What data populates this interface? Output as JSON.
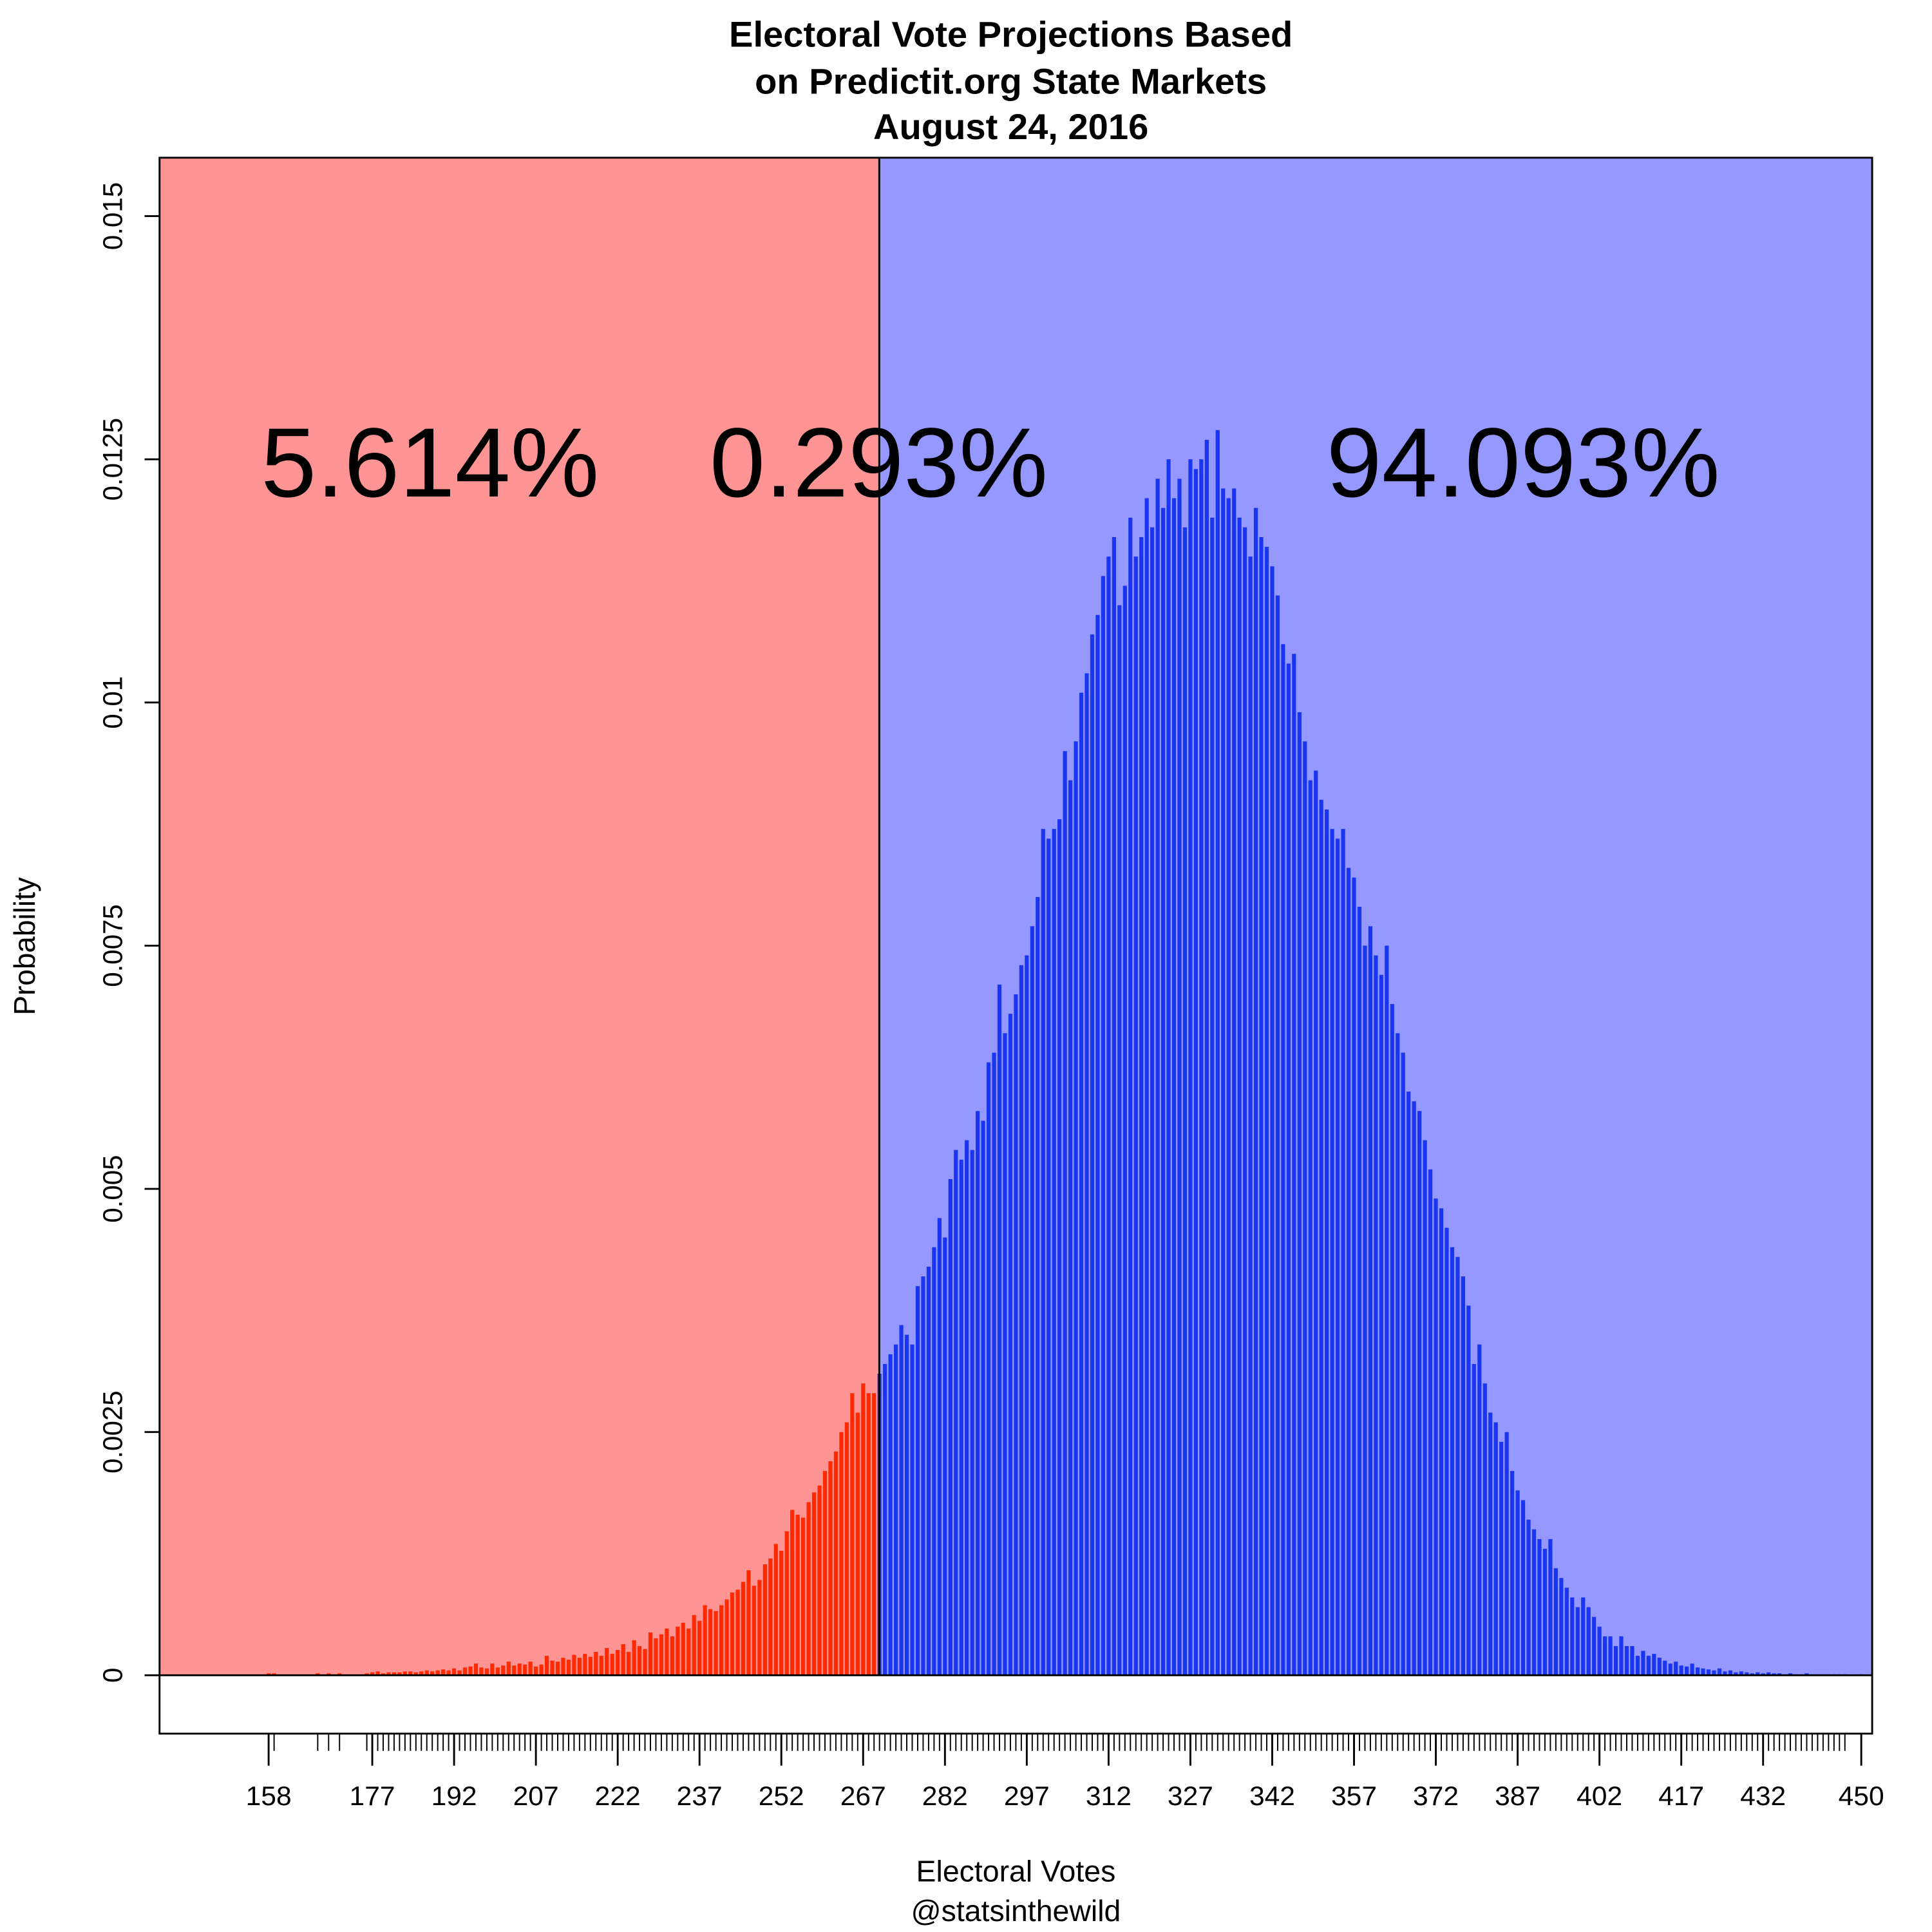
{
  "chart_data": {
    "type": "bar",
    "title": [
      "Electoral Vote Projections Based",
      "on Predictit.org State Markets",
      "August 24, 2016"
    ],
    "xlabel": "Electoral Votes",
    "caption": "@statsinthewild",
    "ylabel": "Probability",
    "annotations": [
      "5.614%",
      "0.293%",
      "94.093%"
    ],
    "background_colors": [
      "#ff9494",
      "#9498ff"
    ],
    "xlim": [
      138,
      452
    ],
    "ylim": [
      -0.0006,
      0.0156
    ],
    "xticks": [
      158,
      177,
      192,
      207,
      222,
      237,
      252,
      267,
      282,
      297,
      312,
      327,
      342,
      357,
      372,
      387,
      402,
      417,
      432,
      450
    ],
    "yticks": [
      0,
      0.0025,
      0.005,
      0.0075,
      0.01,
      0.0125,
      0.015
    ],
    "series": [
      {
        "color": "#ff2a00",
        "x": [
          158,
          159,
          167,
          169,
          171,
          176,
          177,
          178,
          179,
          180,
          181,
          182,
          183,
          184,
          185,
          186,
          187,
          188,
          189,
          190,
          191,
          192,
          193,
          194,
          195,
          196,
          197,
          198,
          199,
          200,
          201,
          202,
          203,
          204,
          205,
          206,
          207,
          208,
          209,
          210,
          211,
          212,
          213,
          214,
          215,
          216,
          217,
          218,
          219,
          220,
          221,
          222,
          223,
          224,
          225,
          226,
          227,
          228,
          229,
          230,
          231,
          232,
          233,
          234,
          235,
          236,
          237,
          238,
          239,
          240,
          241,
          242,
          243,
          244,
          245,
          246,
          247,
          248,
          249,
          250,
          251,
          252,
          253,
          254,
          255,
          256,
          257,
          258,
          259,
          260,
          261,
          262,
          263,
          264,
          265,
          266,
          267,
          268,
          269
        ],
        "values": [
          2e-05,
          2e-05,
          2e-05,
          2e-05,
          2e-05,
          2e-05,
          3e-05,
          4e-05,
          2e-05,
          3e-05,
          3e-05,
          3e-05,
          4e-05,
          4e-05,
          3e-05,
          4e-05,
          5e-05,
          4e-05,
          5e-05,
          6e-05,
          5e-05,
          7e-05,
          5e-05,
          8e-05,
          9e-05,
          0.00012,
          8e-05,
          7e-05,
          0.00012,
          8e-05,
          0.0001,
          0.00014,
          0.0001,
          0.00012,
          0.00011,
          0.00014,
          9e-05,
          0.00011,
          0.0002,
          0.00015,
          0.00014,
          0.00018,
          0.00016,
          0.00021,
          0.00018,
          0.00022,
          0.00019,
          0.00024,
          0.0002,
          0.00028,
          0.00022,
          0.00026,
          0.00032,
          0.00024,
          0.00036,
          0.0003,
          0.00027,
          0.00044,
          0.00038,
          0.00042,
          0.00048,
          0.0004,
          0.0005,
          0.00054,
          0.00048,
          0.00062,
          0.00056,
          0.00072,
          0.00068,
          0.00066,
          0.00072,
          0.00078,
          0.00085,
          0.00088,
          0.00096,
          0.00108,
          0.00092,
          0.00098,
          0.00114,
          0.0012,
          0.00135,
          0.00128,
          0.00148,
          0.0017,
          0.00165,
          0.00162,
          0.00178,
          0.00188,
          0.00195,
          0.0021,
          0.0022,
          0.0023,
          0.0025,
          0.0026,
          0.0029,
          0.0027,
          0.003,
          0.0029,
          0.0029
        ]
      },
      {
        "color": "#1a35f0",
        "x": [
          270,
          271,
          272,
          273,
          274,
          275,
          276,
          277,
          278,
          279,
          280,
          281,
          282,
          283,
          284,
          285,
          286,
          287,
          288,
          289,
          290,
          291,
          292,
          293,
          294,
          295,
          296,
          297,
          298,
          299,
          300,
          301,
          302,
          303,
          304,
          305,
          306,
          307,
          308,
          309,
          310,
          311,
          312,
          313,
          314,
          315,
          316,
          317,
          318,
          319,
          320,
          321,
          322,
          323,
          324,
          325,
          326,
          327,
          328,
          329,
          330,
          331,
          332,
          333,
          334,
          335,
          336,
          337,
          338,
          339,
          340,
          341,
          342,
          343,
          344,
          345,
          346,
          347,
          348,
          349,
          350,
          351,
          352,
          353,
          354,
          355,
          356,
          357,
          358,
          359,
          360,
          361,
          362,
          363,
          364,
          365,
          366,
          367,
          368,
          369,
          370,
          371,
          372,
          373,
          374,
          375,
          376,
          377,
          378,
          379,
          380,
          381,
          382,
          383,
          384,
          385,
          386,
          387,
          388,
          389,
          390,
          391,
          392,
          393,
          394,
          395,
          396,
          397,
          398,
          399,
          400,
          401,
          402,
          403,
          404,
          405,
          406,
          407,
          408,
          409,
          410,
          411,
          412,
          413,
          414,
          415,
          416,
          417,
          418,
          419,
          420,
          421,
          422,
          423,
          424,
          425,
          426,
          427,
          428,
          429,
          430,
          431,
          432,
          433,
          434,
          435,
          436,
          437,
          438,
          439,
          440,
          441,
          442,
          443,
          444,
          445,
          446,
          447,
          450
        ],
        "values": [
          0.0031,
          0.0032,
          0.0033,
          0.0034,
          0.0036,
          0.0035,
          0.0034,
          0.004,
          0.0041,
          0.0042,
          0.0044,
          0.0047,
          0.0045,
          0.0051,
          0.0054,
          0.0053,
          0.0055,
          0.0054,
          0.0058,
          0.0057,
          0.0063,
          0.0064,
          0.0071,
          0.0066,
          0.0068,
          0.007,
          0.0073,
          0.0074,
          0.0077,
          0.008,
          0.0087,
          0.0086,
          0.0087,
          0.0088,
          0.0095,
          0.0092,
          0.0096,
          0.0101,
          0.0103,
          0.0107,
          0.0109,
          0.0113,
          0.0115,
          0.0117,
          0.011,
          0.0112,
          0.0119,
          0.0115,
          0.0117,
          0.0121,
          0.0118,
          0.0123,
          0.012,
          0.0125,
          0.0121,
          0.0123,
          0.0118,
          0.0125,
          0.0124,
          0.0125,
          0.0127,
          0.0119,
          0.0128,
          0.0122,
          0.0121,
          0.0122,
          0.0119,
          0.0118,
          0.0115,
          0.012,
          0.0117,
          0.0116,
          0.0114,
          0.0111,
          0.0106,
          0.0104,
          0.0105,
          0.0099,
          0.0096,
          0.0092,
          0.0093,
          0.009,
          0.0089,
          0.0087,
          0.0086,
          0.0087,
          0.0083,
          0.0082,
          0.0079,
          0.0075,
          0.0077,
          0.0074,
          0.0072,
          0.0075,
          0.0069,
          0.0066,
          0.0064,
          0.006,
          0.0059,
          0.0058,
          0.0055,
          0.0052,
          0.0049,
          0.0048,
          0.0046,
          0.0044,
          0.0043,
          0.0041,
          0.0038,
          0.0032,
          0.0034,
          0.003,
          0.0027,
          0.0026,
          0.0024,
          0.0025,
          0.0021,
          0.0019,
          0.0018,
          0.0016,
          0.0015,
          0.0014,
          0.0013,
          0.0014,
          0.0011,
          0.001,
          0.0009,
          0.0008,
          0.0007,
          0.0008,
          0.0007,
          0.0006,
          0.0005,
          0.0004,
          0.0004,
          0.0003,
          0.0004,
          0.0003,
          0.0003,
          0.0002,
          0.00025,
          0.0002,
          0.00022,
          0.00018,
          0.00015,
          0.00012,
          0.00014,
          0.0001,
          9e-05,
          0.00012,
          8e-05,
          7e-05,
          6e-05,
          5e-05,
          7e-05,
          4e-05,
          5e-05,
          3e-05,
          4e-05,
          3e-05,
          2e-05,
          3e-05,
          2e-05,
          3e-05,
          2e-05,
          2e-05,
          1e-05,
          2e-05,
          1e-05,
          1e-05,
          2e-05,
          1e-05,
          1e-05,
          1e-05,
          1e-05,
          1e-05,
          1e-05,
          1e-05,
          1e-05
        ]
      }
    ]
  }
}
